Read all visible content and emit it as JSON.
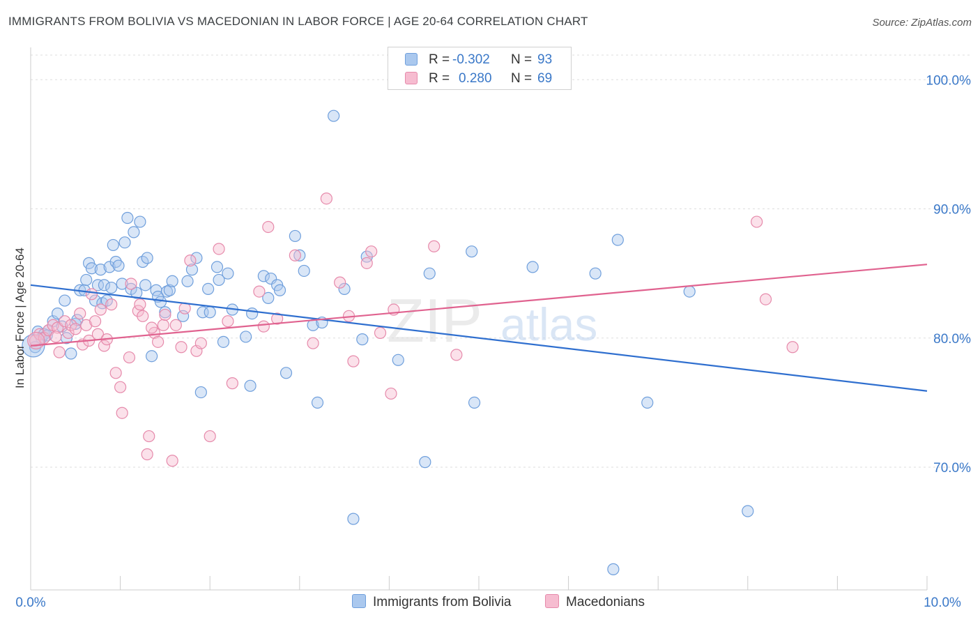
{
  "header": {
    "title": "IMMIGRANTS FROM BOLIVIA VS MACEDONIAN IN LABOR FORCE | AGE 20-64 CORRELATION CHART",
    "source": "Source: ZipAtlas.com"
  },
  "watermark": {
    "zip": "ZIP",
    "atlas": "atlas"
  },
  "legend_top": {
    "rows": [
      {
        "r_label": "R =",
        "r_value": "-0.302",
        "n_label": "N =",
        "n_value": "93"
      },
      {
        "r_label": "R =",
        "r_value": "0.280",
        "n_label": "N =",
        "n_value": "69"
      }
    ]
  },
  "legend_bottom": {
    "items": [
      {
        "label": "Immigrants from Bolivia"
      },
      {
        "label": "Macedonians"
      }
    ]
  },
  "colors": {
    "blue_fill": "#aac8ee",
    "blue_stroke": "#6f9fdc",
    "blue_line": "#2f6fcf",
    "pink_fill": "#f6bcd0",
    "pink_stroke": "#e68aab",
    "pink_line": "#e0628f",
    "tick_text": "#3a78c8",
    "grid": "#dddddd"
  },
  "chart_data": {
    "type": "scatter",
    "title": "IMMIGRANTS FROM BOLIVIA VS MACEDONIAN IN LABOR FORCE | AGE 20-64 CORRELATION CHART",
    "xlabel": "",
    "ylabel": "In Labor Force | Age 20-64",
    "xlim": [
      0,
      10
    ],
    "ylim": [
      60.5,
      102.5
    ],
    "x_tick_labels": [
      "0.0%",
      "10.0%"
    ],
    "y_ticks": [
      70,
      80,
      90,
      100
    ],
    "y_tick_labels": [
      "70.0%",
      "80.0%",
      "90.0%",
      "100.0%"
    ],
    "grid": true,
    "legend_position": "top-center",
    "series": [
      {
        "name": "Immigrants from Bolivia",
        "color": "#6f9fdc",
        "trend": {
          "x": [
            0,
            10
          ],
          "y": [
            84.1,
            75.9
          ]
        },
        "points": [
          {
            "x": 0.05,
            "y": 79.3
          },
          {
            "x": 0.08,
            "y": 80.5
          },
          {
            "x": 0.12,
            "y": 80.0
          },
          {
            "x": 0.15,
            "y": 80.3
          },
          {
            "x": 0.2,
            "y": 80.6
          },
          {
            "x": 0.25,
            "y": 81.3
          },
          {
            "x": 0.3,
            "y": 81.9
          },
          {
            "x": 0.35,
            "y": 80.9
          },
          {
            "x": 0.38,
            "y": 82.9
          },
          {
            "x": 0.4,
            "y": 80.0
          },
          {
            "x": 0.45,
            "y": 78.8
          },
          {
            "x": 0.5,
            "y": 81.1
          },
          {
            "x": 0.52,
            "y": 81.4
          },
          {
            "x": 0.55,
            "y": 83.7
          },
          {
            "x": 0.6,
            "y": 83.7
          },
          {
            "x": 0.62,
            "y": 84.5
          },
          {
            "x": 0.65,
            "y": 85.8
          },
          {
            "x": 0.68,
            "y": 85.4
          },
          {
            "x": 0.72,
            "y": 82.9
          },
          {
            "x": 0.75,
            "y": 84.1
          },
          {
            "x": 0.78,
            "y": 85.3
          },
          {
            "x": 0.8,
            "y": 82.7
          },
          {
            "x": 0.82,
            "y": 84.1
          },
          {
            "x": 0.85,
            "y": 82.9
          },
          {
            "x": 0.88,
            "y": 85.5
          },
          {
            "x": 0.9,
            "y": 83.9
          },
          {
            "x": 0.92,
            "y": 87.2
          },
          {
            "x": 0.95,
            "y": 85.9
          },
          {
            "x": 0.98,
            "y": 85.6
          },
          {
            "x": 1.02,
            "y": 84.2
          },
          {
            "x": 1.05,
            "y": 87.4
          },
          {
            "x": 1.08,
            "y": 89.3
          },
          {
            "x": 1.12,
            "y": 83.8
          },
          {
            "x": 1.15,
            "y": 88.2
          },
          {
            "x": 1.18,
            "y": 83.5
          },
          {
            "x": 1.22,
            "y": 89.0
          },
          {
            "x": 1.25,
            "y": 85.9
          },
          {
            "x": 1.28,
            "y": 84.1
          },
          {
            "x": 1.3,
            "y": 86.2
          },
          {
            "x": 1.35,
            "y": 78.6
          },
          {
            "x": 1.4,
            "y": 83.7
          },
          {
            "x": 1.42,
            "y": 83.2
          },
          {
            "x": 1.45,
            "y": 82.8
          },
          {
            "x": 1.5,
            "y": 82.0
          },
          {
            "x": 1.52,
            "y": 83.6
          },
          {
            "x": 1.55,
            "y": 83.7
          },
          {
            "x": 1.58,
            "y": 84.4
          },
          {
            "x": 1.7,
            "y": 81.7
          },
          {
            "x": 1.75,
            "y": 84.4
          },
          {
            "x": 1.8,
            "y": 85.3
          },
          {
            "x": 1.85,
            "y": 86.2
          },
          {
            "x": 1.9,
            "y": 75.8
          },
          {
            "x": 1.92,
            "y": 82.0
          },
          {
            "x": 1.98,
            "y": 83.8
          },
          {
            "x": 2.0,
            "y": 82.0
          },
          {
            "x": 2.08,
            "y": 85.5
          },
          {
            "x": 2.1,
            "y": 84.5
          },
          {
            "x": 2.15,
            "y": 79.7
          },
          {
            "x": 2.2,
            "y": 85.0
          },
          {
            "x": 2.25,
            "y": 82.2
          },
          {
            "x": 2.4,
            "y": 80.1
          },
          {
            "x": 2.45,
            "y": 76.3
          },
          {
            "x": 2.47,
            "y": 81.9
          },
          {
            "x": 2.6,
            "y": 84.8
          },
          {
            "x": 2.65,
            "y": 83.1
          },
          {
            "x": 2.68,
            "y": 84.6
          },
          {
            "x": 2.75,
            "y": 84.1
          },
          {
            "x": 2.78,
            "y": 83.7
          },
          {
            "x": 2.85,
            "y": 77.3
          },
          {
            "x": 2.95,
            "y": 87.9
          },
          {
            "x": 3.0,
            "y": 86.4
          },
          {
            "x": 3.05,
            "y": 85.2
          },
          {
            "x": 3.15,
            "y": 81.0
          },
          {
            "x": 3.2,
            "y": 75.0
          },
          {
            "x": 3.25,
            "y": 81.2
          },
          {
            "x": 3.38,
            "y": 97.2
          },
          {
            "x": 3.5,
            "y": 83.8
          },
          {
            "x": 3.7,
            "y": 79.9
          },
          {
            "x": 3.75,
            "y": 86.3
          },
          {
            "x": 3.6,
            "y": 66.0
          },
          {
            "x": 4.1,
            "y": 78.3
          },
          {
            "x": 4.45,
            "y": 85.0
          },
          {
            "x": 4.4,
            "y": 70.4
          },
          {
            "x": 4.92,
            "y": 86.7
          },
          {
            "x": 4.95,
            "y": 75.0
          },
          {
            "x": 5.6,
            "y": 85.5
          },
          {
            "x": 6.3,
            "y": 85.0
          },
          {
            "x": 6.55,
            "y": 87.6
          },
          {
            "x": 6.5,
            "y": 62.1
          },
          {
            "x": 6.88,
            "y": 75.0
          },
          {
            "x": 7.35,
            "y": 83.6
          },
          {
            "x": 8.0,
            "y": 66.6
          },
          {
            "x": 0.18,
            "y": 80.2
          }
        ]
      },
      {
        "name": "Macedonians",
        "color": "#e68aab",
        "trend": {
          "x": [
            0,
            10
          ],
          "y": [
            79.4,
            85.7
          ]
        },
        "points": [
          {
            "x": 0.05,
            "y": 79.8
          },
          {
            "x": 0.1,
            "y": 80.3
          },
          {
            "x": 0.15,
            "y": 80.0
          },
          {
            "x": 0.2,
            "y": 80.6
          },
          {
            "x": 0.25,
            "y": 81.0
          },
          {
            "x": 0.3,
            "y": 80.8
          },
          {
            "x": 0.32,
            "y": 78.9
          },
          {
            "x": 0.38,
            "y": 81.3
          },
          {
            "x": 0.42,
            "y": 80.4
          },
          {
            "x": 0.45,
            "y": 81.0
          },
          {
            "x": 0.5,
            "y": 80.7
          },
          {
            "x": 0.55,
            "y": 81.9
          },
          {
            "x": 0.58,
            "y": 79.5
          },
          {
            "x": 0.62,
            "y": 81.0
          },
          {
            "x": 0.65,
            "y": 79.8
          },
          {
            "x": 0.68,
            "y": 83.4
          },
          {
            "x": 0.72,
            "y": 81.3
          },
          {
            "x": 0.75,
            "y": 80.3
          },
          {
            "x": 0.78,
            "y": 82.2
          },
          {
            "x": 0.82,
            "y": 79.4
          },
          {
            "x": 0.85,
            "y": 79.9
          },
          {
            "x": 0.9,
            "y": 82.6
          },
          {
            "x": 0.95,
            "y": 77.3
          },
          {
            "x": 1.0,
            "y": 76.2
          },
          {
            "x": 1.02,
            "y": 74.2
          },
          {
            "x": 1.1,
            "y": 78.5
          },
          {
            "x": 1.12,
            "y": 84.2
          },
          {
            "x": 1.2,
            "y": 82.1
          },
          {
            "x": 1.22,
            "y": 82.6
          },
          {
            "x": 1.25,
            "y": 81.7
          },
          {
            "x": 1.3,
            "y": 71.0
          },
          {
            "x": 1.32,
            "y": 72.4
          },
          {
            "x": 1.38,
            "y": 80.4
          },
          {
            "x": 1.42,
            "y": 79.7
          },
          {
            "x": 1.48,
            "y": 81.0
          },
          {
            "x": 1.5,
            "y": 81.8
          },
          {
            "x": 1.58,
            "y": 70.5
          },
          {
            "x": 1.62,
            "y": 81.0
          },
          {
            "x": 1.68,
            "y": 79.3
          },
          {
            "x": 1.72,
            "y": 82.3
          },
          {
            "x": 1.78,
            "y": 86.0
          },
          {
            "x": 1.85,
            "y": 79.0
          },
          {
            "x": 1.9,
            "y": 79.6
          },
          {
            "x": 2.0,
            "y": 72.4
          },
          {
            "x": 2.1,
            "y": 86.9
          },
          {
            "x": 2.2,
            "y": 81.3
          },
          {
            "x": 2.25,
            "y": 76.5
          },
          {
            "x": 2.55,
            "y": 83.6
          },
          {
            "x": 2.6,
            "y": 80.9
          },
          {
            "x": 2.65,
            "y": 88.6
          },
          {
            "x": 2.75,
            "y": 81.5
          },
          {
            "x": 2.95,
            "y": 86.4
          },
          {
            "x": 3.15,
            "y": 79.6
          },
          {
            "x": 3.3,
            "y": 90.8
          },
          {
            "x": 3.45,
            "y": 84.3
          },
          {
            "x": 3.55,
            "y": 81.7
          },
          {
            "x": 3.6,
            "y": 78.2
          },
          {
            "x": 3.75,
            "y": 85.8
          },
          {
            "x": 3.8,
            "y": 86.7
          },
          {
            "x": 3.9,
            "y": 80.4
          },
          {
            "x": 4.02,
            "y": 75.7
          },
          {
            "x": 4.05,
            "y": 82.2
          },
          {
            "x": 4.5,
            "y": 87.1
          },
          {
            "x": 4.75,
            "y": 78.7
          },
          {
            "x": 8.1,
            "y": 89.0
          },
          {
            "x": 8.2,
            "y": 83.0
          },
          {
            "x": 8.5,
            "y": 79.3
          },
          {
            "x": 1.35,
            "y": 80.8
          },
          {
            "x": 0.28,
            "y": 80.1
          }
        ]
      }
    ]
  }
}
